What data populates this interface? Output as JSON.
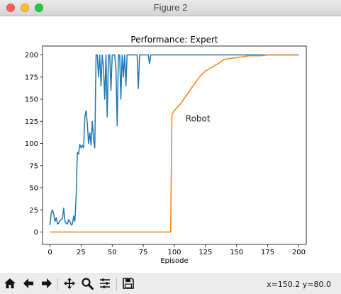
{
  "window": {
    "title": "Figure 2"
  },
  "chart_data": {
    "type": "line",
    "title": "Performance: Expert",
    "xlabel": "Episode",
    "ylabel": "",
    "xlim": [
      -6,
      206
    ],
    "ylim": [
      -14,
      210
    ],
    "xticks": [
      0,
      25,
      50,
      75,
      100,
      125,
      150,
      175,
      200
    ],
    "yticks": [
      0,
      25,
      50,
      75,
      100,
      125,
      150,
      175,
      200
    ],
    "annotation": {
      "text": "Robot",
      "x": 109,
      "y": 128
    },
    "series": [
      {
        "color": "#1f77b4",
        "x": [
          0,
          1,
          2,
          3,
          4,
          5,
          6,
          7,
          8,
          9,
          10,
          11,
          12,
          13,
          14,
          15,
          16,
          17,
          18,
          19,
          20,
          21,
          22,
          23,
          24,
          25,
          26,
          27,
          28,
          29,
          30,
          31,
          32,
          33,
          34,
          35,
          36,
          37,
          38,
          39,
          40,
          41,
          42,
          43,
          44,
          45,
          46,
          47,
          48,
          49,
          50,
          51,
          52,
          53,
          54,
          55,
          56,
          57,
          58,
          59,
          60,
          61,
          62,
          63,
          64,
          65,
          66,
          67,
          68,
          69,
          70,
          71,
          72,
          73,
          74,
          75,
          76,
          77,
          78,
          79,
          80,
          81,
          82,
          83,
          84,
          85,
          86,
          87,
          88,
          89,
          90,
          100,
          120,
          140,
          160,
          180,
          200
        ],
        "y": [
          8,
          22,
          25,
          20,
          12,
          16,
          9,
          10,
          13,
          14,
          15,
          27,
          12,
          10,
          9,
          14,
          12,
          8,
          9,
          18,
          12,
          40,
          90,
          88,
          99,
          95,
          98,
          95,
          130,
          137,
          122,
          100,
          112,
          98,
          125,
          105,
          95,
          200,
          200,
          175,
          200,
          165,
          200,
          185,
          150,
          200,
          130,
          200,
          200,
          160,
          200,
          200,
          200,
          185,
          120,
          200,
          200,
          150,
          200,
          175,
          200,
          165,
          200,
          200,
          200,
          200,
          200,
          200,
          200,
          200,
          200,
          162,
          200,
          200,
          200,
          200,
          200,
          200,
          200,
          200,
          190,
          200,
          200,
          200,
          200,
          200,
          200,
          200,
          200,
          200,
          200,
          200,
          200,
          200,
          200,
          200,
          200
        ]
      },
      {
        "color": "#ff7f0e",
        "x": [
          0,
          97,
          98,
          100,
          105,
          110,
          115,
          120,
          125,
          130,
          135,
          140,
          145,
          150,
          155,
          160,
          165,
          170,
          175,
          180,
          190,
          200
        ],
        "y": [
          0,
          0,
          133,
          137,
          145,
          155,
          165,
          175,
          182,
          186,
          190,
          195,
          196,
          197,
          198,
          199,
          199,
          199,
          200,
          200,
          200,
          200
        ]
      }
    ]
  },
  "toolbar": {
    "items": [
      {
        "name": "home-icon"
      },
      {
        "name": "back-icon"
      },
      {
        "name": "forward-icon"
      },
      {
        "name": "pan-icon"
      },
      {
        "name": "zoom-icon"
      },
      {
        "name": "subplots-icon"
      },
      {
        "name": "save-icon"
      }
    ],
    "coords": "x=150.2 y=80.0"
  }
}
